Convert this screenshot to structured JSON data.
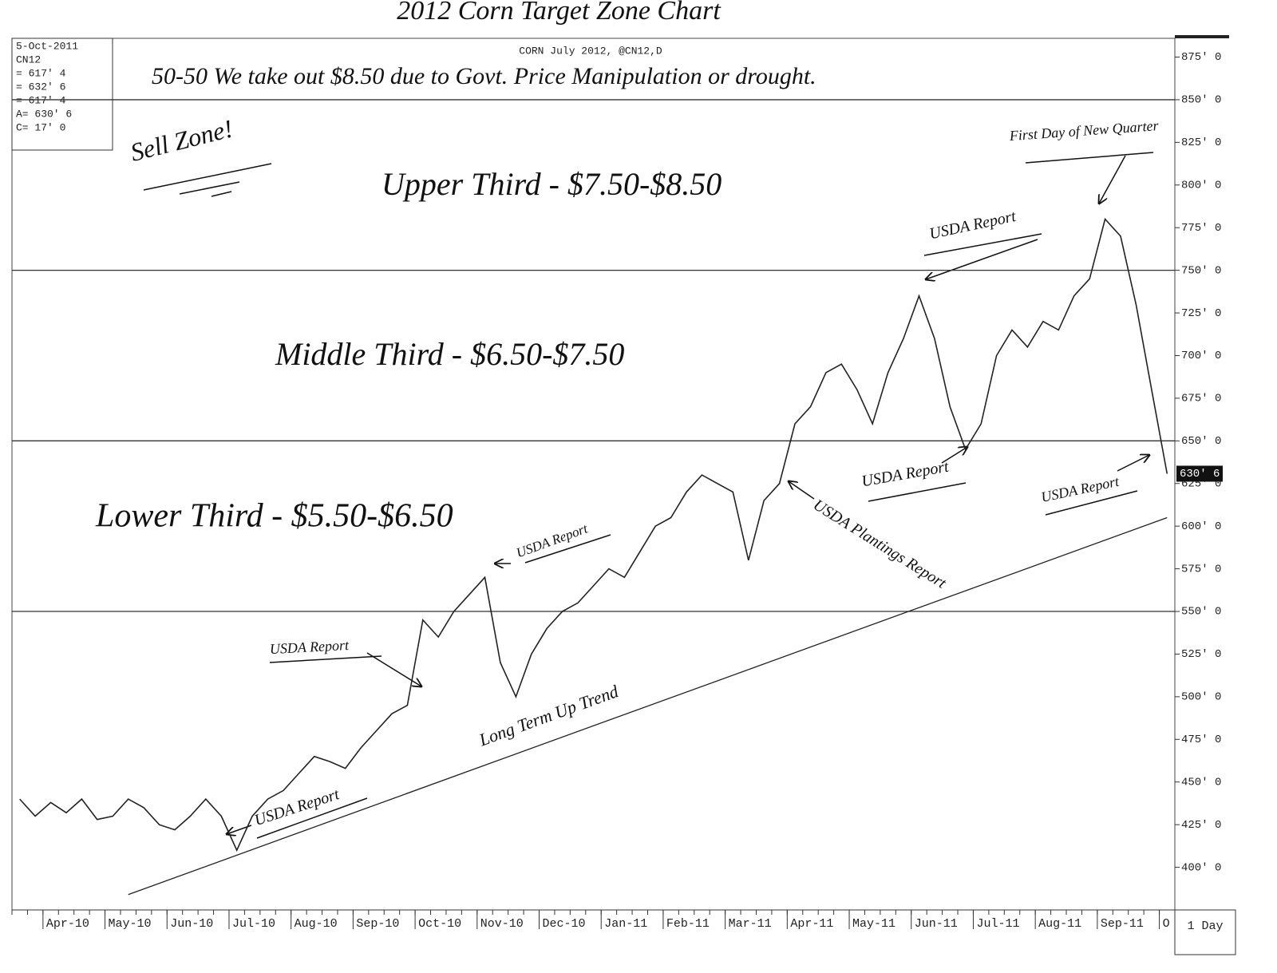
{
  "chart_data": {
    "type": "line",
    "title": "2012 Corn Target Zone Chart",
    "subtitle": "CORN July 2012, @CN12,D",
    "info_box": [
      "5-Oct-2011",
      "CN12",
      "= 617' 4",
      "= 632' 6",
      "= 617' 4",
      "A= 630' 6",
      "C= 17' 0"
    ],
    "period_label": "1 Day",
    "categories": [
      null,
      null,
      "Apr-10",
      null,
      null,
      null,
      "May-10",
      null,
      null,
      null,
      "Jun-10",
      null,
      null,
      null,
      "Jul-10",
      null,
      null,
      null,
      "Aug-10",
      null,
      null,
      null,
      "Sep-10",
      null,
      null,
      null,
      "Oct-10",
      null,
      null,
      null,
      "Nov-10",
      null,
      null,
      null,
      "Dec-10",
      null,
      null,
      null,
      "Jan-11",
      null,
      null,
      null,
      "Feb-11",
      null,
      null,
      null,
      "Mar-11",
      null,
      null,
      null,
      "Apr-11",
      null,
      null,
      null,
      "May-11",
      null,
      null,
      null,
      "Jun-11",
      null,
      null,
      null,
      "Jul-11",
      null,
      null,
      null,
      "Aug-11",
      null,
      null,
      null,
      "Sep-11",
      null,
      null,
      null,
      "O"
    ],
    "series": [
      {
        "name": "CN12",
        "color": "#222222",
        "values": [
          440,
          430,
          438,
          432,
          440,
          428,
          430,
          440,
          435,
          425,
          422,
          430,
          440,
          430,
          410,
          430,
          440,
          445,
          455,
          465,
          462,
          458,
          470,
          480,
          490,
          495,
          545,
          535,
          550,
          560,
          570,
          520,
          500,
          525,
          540,
          550,
          555,
          565,
          575,
          570,
          585,
          600,
          605,
          620,
          630,
          625,
          620,
          580,
          615,
          625,
          660,
          670,
          690,
          695,
          680,
          660,
          690,
          710,
          735,
          710,
          670,
          645,
          660,
          700,
          715,
          705,
          720,
          715,
          735,
          745,
          780,
          770,
          730,
          680,
          630.75
        ]
      }
    ],
    "price_tag": {
      "value": 630.75,
      "label": "630' 6"
    },
    "ylim": [
      375,
      886
    ],
    "yticks": [
      {
        "value": 400,
        "label": "400' 0"
      },
      {
        "value": 425,
        "label": "425' 0"
      },
      {
        "value": 450,
        "label": "450' 0"
      },
      {
        "value": 475,
        "label": "475' 0"
      },
      {
        "value": 500,
        "label": "500' 0"
      },
      {
        "value": 525,
        "label": "525' 0"
      },
      {
        "value": 550,
        "label": "550' 0"
      },
      {
        "value": 575,
        "label": "575' 0"
      },
      {
        "value": 600,
        "label": "600' 0"
      },
      {
        "value": 625,
        "label": "625' 0"
      },
      {
        "value": 650,
        "label": "650' 0"
      },
      {
        "value": 675,
        "label": "675' 0"
      },
      {
        "value": 700,
        "label": "700' 0"
      },
      {
        "value": 725,
        "label": "725' 0"
      },
      {
        "value": 750,
        "label": "750' 0"
      },
      {
        "value": 775,
        "label": "775' 0"
      },
      {
        "value": 800,
        "label": "800' 0"
      },
      {
        "value": 825,
        "label": "825' 0"
      },
      {
        "value": 850,
        "label": "850' 0"
      },
      {
        "value": 875,
        "label": "875' 0"
      }
    ],
    "zone_lines": [
      850,
      750,
      650,
      550
    ],
    "trend_line": {
      "start": [
        7,
        384
      ],
      "end": [
        74,
        605
      ]
    },
    "annotations": [
      "50-50 We take out $8.50 due to Govt. Price Manipulation or drought.",
      "Sell Zone!",
      "Upper Third - $7.50-$8.50",
      "Middle Third - $6.50-$7.50",
      "Lower Third - $5.50-$6.50",
      "First Day of New Quarter",
      "USDA Report",
      "USDA Report",
      "USDA Report",
      "USDA Report",
      "USDA Report",
      "USDA Report",
      "USDA Plantings Report",
      "Long Term Up Trend"
    ]
  }
}
